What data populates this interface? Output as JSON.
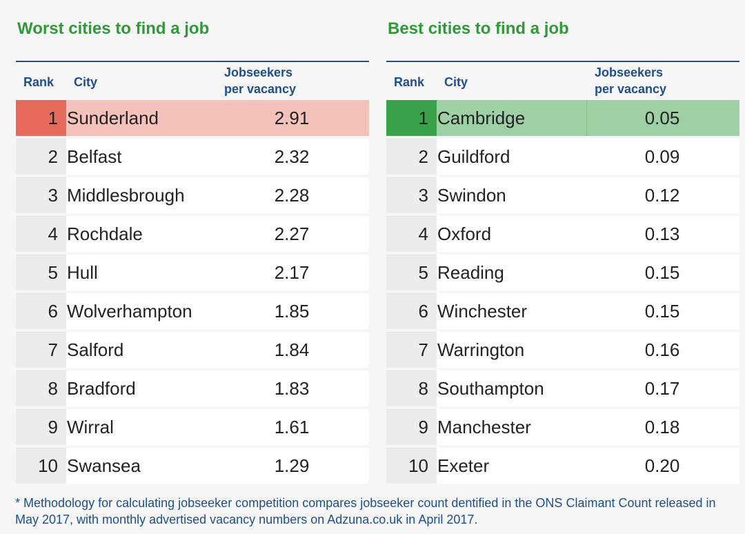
{
  "worst": {
    "title": "Worst cities to find a job",
    "headers": {
      "rank": "Rank",
      "city": "City",
      "jobseekers": "Jobseekers\nper vacancy"
    },
    "rows": [
      {
        "rank": "1",
        "city": "Sunderland",
        "value": "2.91"
      },
      {
        "rank": "2",
        "city": "Belfast",
        "value": "2.32"
      },
      {
        "rank": "3",
        "city": "Middlesbrough",
        "value": "2.28"
      },
      {
        "rank": "4",
        "city": "Rochdale",
        "value": "2.27"
      },
      {
        "rank": "5",
        "city": "Hull",
        "value": "2.17"
      },
      {
        "rank": "6",
        "city": "Wolverhampton",
        "value": "1.85"
      },
      {
        "rank": "7",
        "city": "Salford",
        "value": "1.84"
      },
      {
        "rank": "8",
        "city": "Bradford",
        "value": "1.83"
      },
      {
        "rank": "9",
        "city": "Wirral",
        "value": "1.61"
      },
      {
        "rank": "10",
        "city": "Swansea",
        "value": "1.29"
      }
    ]
  },
  "best": {
    "title": "Best cities to find a job",
    "headers": {
      "rank": "Rank",
      "city": "City",
      "jobseekers": "Jobseekers\nper vacancy"
    },
    "rows": [
      {
        "rank": "1",
        "city": "Cambridge",
        "value": "0.05"
      },
      {
        "rank": "2",
        "city": "Guildford",
        "value": "0.09"
      },
      {
        "rank": "3",
        "city": "Swindon",
        "value": "0.12"
      },
      {
        "rank": "4",
        "city": "Oxford",
        "value": "0.13"
      },
      {
        "rank": "5",
        "city": "Reading",
        "value": "0.15"
      },
      {
        "rank": "6",
        "city": "Winchester",
        "value": "0.15"
      },
      {
        "rank": "7",
        "city": "Warrington",
        "value": "0.16"
      },
      {
        "rank": "8",
        "city": "Southampton",
        "value": "0.17"
      },
      {
        "rank": "9",
        "city": "Manchester",
        "value": "0.18"
      },
      {
        "rank": "10",
        "city": "Exeter",
        "value": "0.20"
      }
    ]
  },
  "footnote": "* Methodology for calculating jobseeker competition compares jobseeker count  dentified in the ONS Claimant Count released in May 2017, with monthly advertised vacancy numbers on Adzuna.co.uk in April 2017.",
  "colors": {
    "title_green": "#2f9a37",
    "header_blue": "#1f4e8c",
    "worst_highlight": "#f4c1bb",
    "worst_highlight_rank": "#e56a5c",
    "best_highlight": "#9fd0a5",
    "best_highlight_rank": "#3aa14a"
  }
}
